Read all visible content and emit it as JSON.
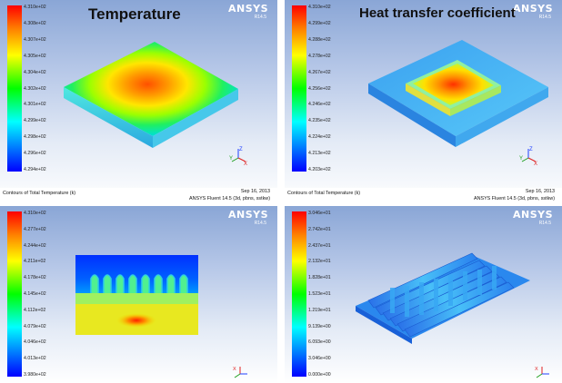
{
  "panels": {
    "tl": {
      "title": "Temperature",
      "ansys": "ANSYS",
      "version": "R14.5",
      "colorbar_ticks": [
        "4.310e+02",
        "4.308e+02",
        "4.307e+02",
        "4.305e+02",
        "4.304e+02",
        "4.302e+02",
        "4.301e+02",
        "4.299e+02",
        "4.298e+02",
        "4.296e+02",
        "4.294e+02"
      ],
      "footer_left": "Contours of Total Temperature (k)",
      "footer_date": "Sep 16, 2013",
      "footer_software": "ANSYS Fluent 14.5 (3d, pbns, sstkw)"
    },
    "tr": {
      "title": "Heat transfer coefficient",
      "ansys": "ANSYS",
      "version": "R14.5",
      "colorbar_ticks": [
        "4.310e+02",
        "4.299e+02",
        "4.288e+02",
        "4.278e+02",
        "4.267e+02",
        "4.256e+02",
        "4.246e+02",
        "4.235e+02",
        "4.224e+02",
        "4.213e+02",
        "4.203e+02"
      ],
      "footer_left": "Contours of Total Temperature (k)",
      "footer_date": "Sep 16, 2013",
      "footer_software": "ANSYS Fluent 14.5 (3d, pbns, sstkw)"
    },
    "bl": {
      "ansys": "ANSYS",
      "version": "R14.5",
      "colorbar_ticks": [
        "4.310e+02",
        "4.277e+02",
        "4.244e+02",
        "4.211e+02",
        "4.178e+02",
        "4.145e+02",
        "4.112e+02",
        "4.079e+02",
        "4.046e+02",
        "4.013e+02",
        "3.980e+02"
      ]
    },
    "br": {
      "ansys": "ANSYS",
      "version": "R14.5",
      "colorbar_ticks": [
        "3.046e+01",
        "2.742e+01",
        "2.437e+01",
        "2.132e+01",
        "1.828e+01",
        "1.523e+01",
        "1.219e+01",
        "9.139e+00",
        "6.093e+00",
        "3.046e+00",
        "0.000e+00"
      ]
    }
  },
  "colors": {
    "background_top": "#8aa6d6",
    "background_bottom": "#ffffff",
    "colormap": [
      "#ff0000",
      "#ff7f00",
      "#ffff00",
      "#00ff00",
      "#00ffff",
      "#0080ff",
      "#0000ff"
    ]
  }
}
